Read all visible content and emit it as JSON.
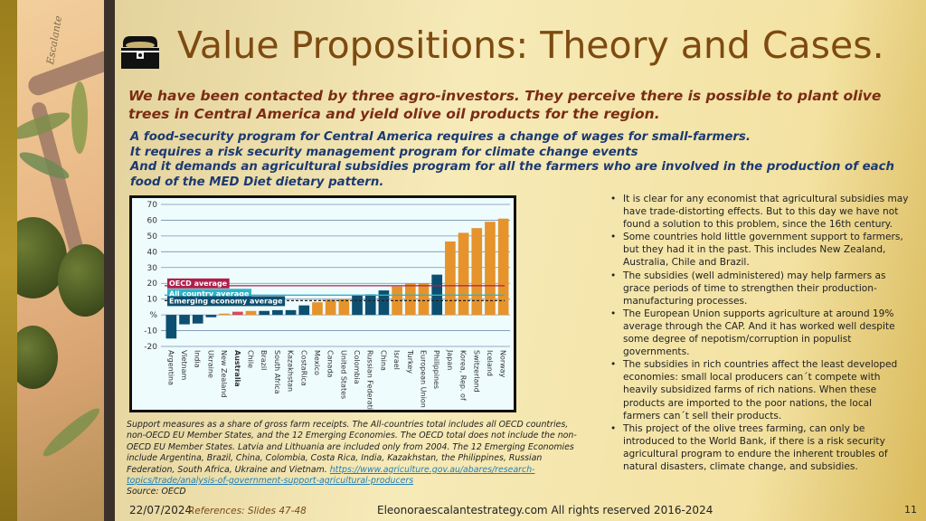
{
  "title": "Value Propositions: Theory and Cases.",
  "signature": "Escalante",
  "intro": "We have been contacted by three agro-investors. They perceive there is possible to plant olive trees in Central America and yield olive oil products for the region.",
  "program_lines": [
    "A food-security program for Central America requires a change of wages for small-farmers.",
    "It requires a risk security management program for climate change events",
    "And it demands an agricultural subsidies program for all the farmers who are involved in the production of each food of the MED Diet dietary pattern."
  ],
  "bullets": [
    "It is clear for any economist that agricultural subsidies may have trade-distorting effects. But to this day we have not found a solution to this problem, since the 16th century.",
    "Some countries hold little government support to farmers, but they had it in the past. This includes New Zealand, Australia, Chile and Brazil.",
    "The subsidies (well administered) may help farmers as grace periods of time to strengthen their production-manufacturing processes.",
    "The European Union supports agriculture at around 19% average through the CAP. And it has worked well despite some degree of nepotism/corruption in populist governments.",
    "The subsidies in rich countries affect the least developed economies: small local producers can´t compete with heavily subsidized farms of rich nations. When these products are imported to the poor nations, the local farmers can´t sell their products.",
    "This project of the olive trees farming, can only be introduced to the World Bank, if there is a risk security agricultural program to endure the inherent troubles of natural disasters, climate change, and subsidies."
  ],
  "caption": "Support measures as a share of gross farm receipts. The All-countries total includes all OECD countries, non-OECD EU Member States, and the 12 Emerging Economies. The OECD total does not include the non-OECD EU Member States. Latvia and Lithuania are included only from 2004. The 12 Emerging Economies include Argentina, Brazil, China, Colombia, Costa Rica, India, Kazakhstan, the Philippines, Russian Federation, South Africa, Ukraine and Vietnam.",
  "link": "https://www.agriculture.gov.au/abares/research-topics/trade/analysis-of-government-support-agricultural-producers",
  "source": "Source: OECD",
  "date": "22/07/2024",
  "references": "References: Slides 47-48",
  "footer": "Eleonoraescalantestrategy.com  All rights reserved 2016-2024",
  "page_number": "11",
  "colors": {
    "emerging": "#0d4f70",
    "oecd": "#e6932c",
    "highlight": "#d94a55",
    "oecd_avg": "#b01e4a",
    "all_avg": "#2bb5c9",
    "emerging_avg": "#0d4f70"
  },
  "chart_data": {
    "type": "bar",
    "title": "",
    "ylabel": "%",
    "ylim": [
      -20,
      70
    ],
    "yticks": [
      "70",
      "60",
      "50",
      "40",
      "30",
      "20",
      "10",
      "%",
      "-10",
      "-20"
    ],
    "categories": [
      "Argentina",
      "Vietnam",
      "India",
      "Ukraine",
      "New Zealand",
      "Australia",
      "Chile",
      "Brazil",
      "South Africa",
      "Kazakhstan",
      "CostaRica",
      "Mexico",
      "Canada",
      "United States",
      "Colombia",
      "Russian Federation",
      "China",
      "Israel",
      "Turkey",
      "European Union",
      "Philippines",
      "Japan",
      "Korea, Rep. of",
      "Switzerland",
      "Iceland",
      "Norway"
    ],
    "values": [
      -15,
      -6,
      -5.5,
      -1.5,
      0.8,
      2,
      2.5,
      2.5,
      3,
      3,
      6,
      8,
      9.5,
      10,
      12.5,
      13,
      15.5,
      18,
      20,
      20,
      25.5,
      46.5,
      52,
      55,
      59,
      61
    ],
    "groups": [
      "emerging",
      "emerging",
      "emerging",
      "emerging",
      "oecd",
      "highlight",
      "oecd",
      "emerging",
      "emerging",
      "emerging",
      "emerging",
      "oecd",
      "oecd",
      "oecd",
      "emerging",
      "emerging",
      "emerging",
      "oecd",
      "oecd",
      "oecd",
      "emerging",
      "oecd",
      "oecd",
      "oecd",
      "oecd",
      "oecd"
    ],
    "reference_lines": [
      {
        "name": "OECD average",
        "value": 18.5,
        "style": "oecd_avg"
      },
      {
        "name": "All country average",
        "value": 12.5,
        "style": "all_avg"
      },
      {
        "name": "Emerging  economy average",
        "value": 9,
        "style": "emerging_avg"
      }
    ]
  }
}
